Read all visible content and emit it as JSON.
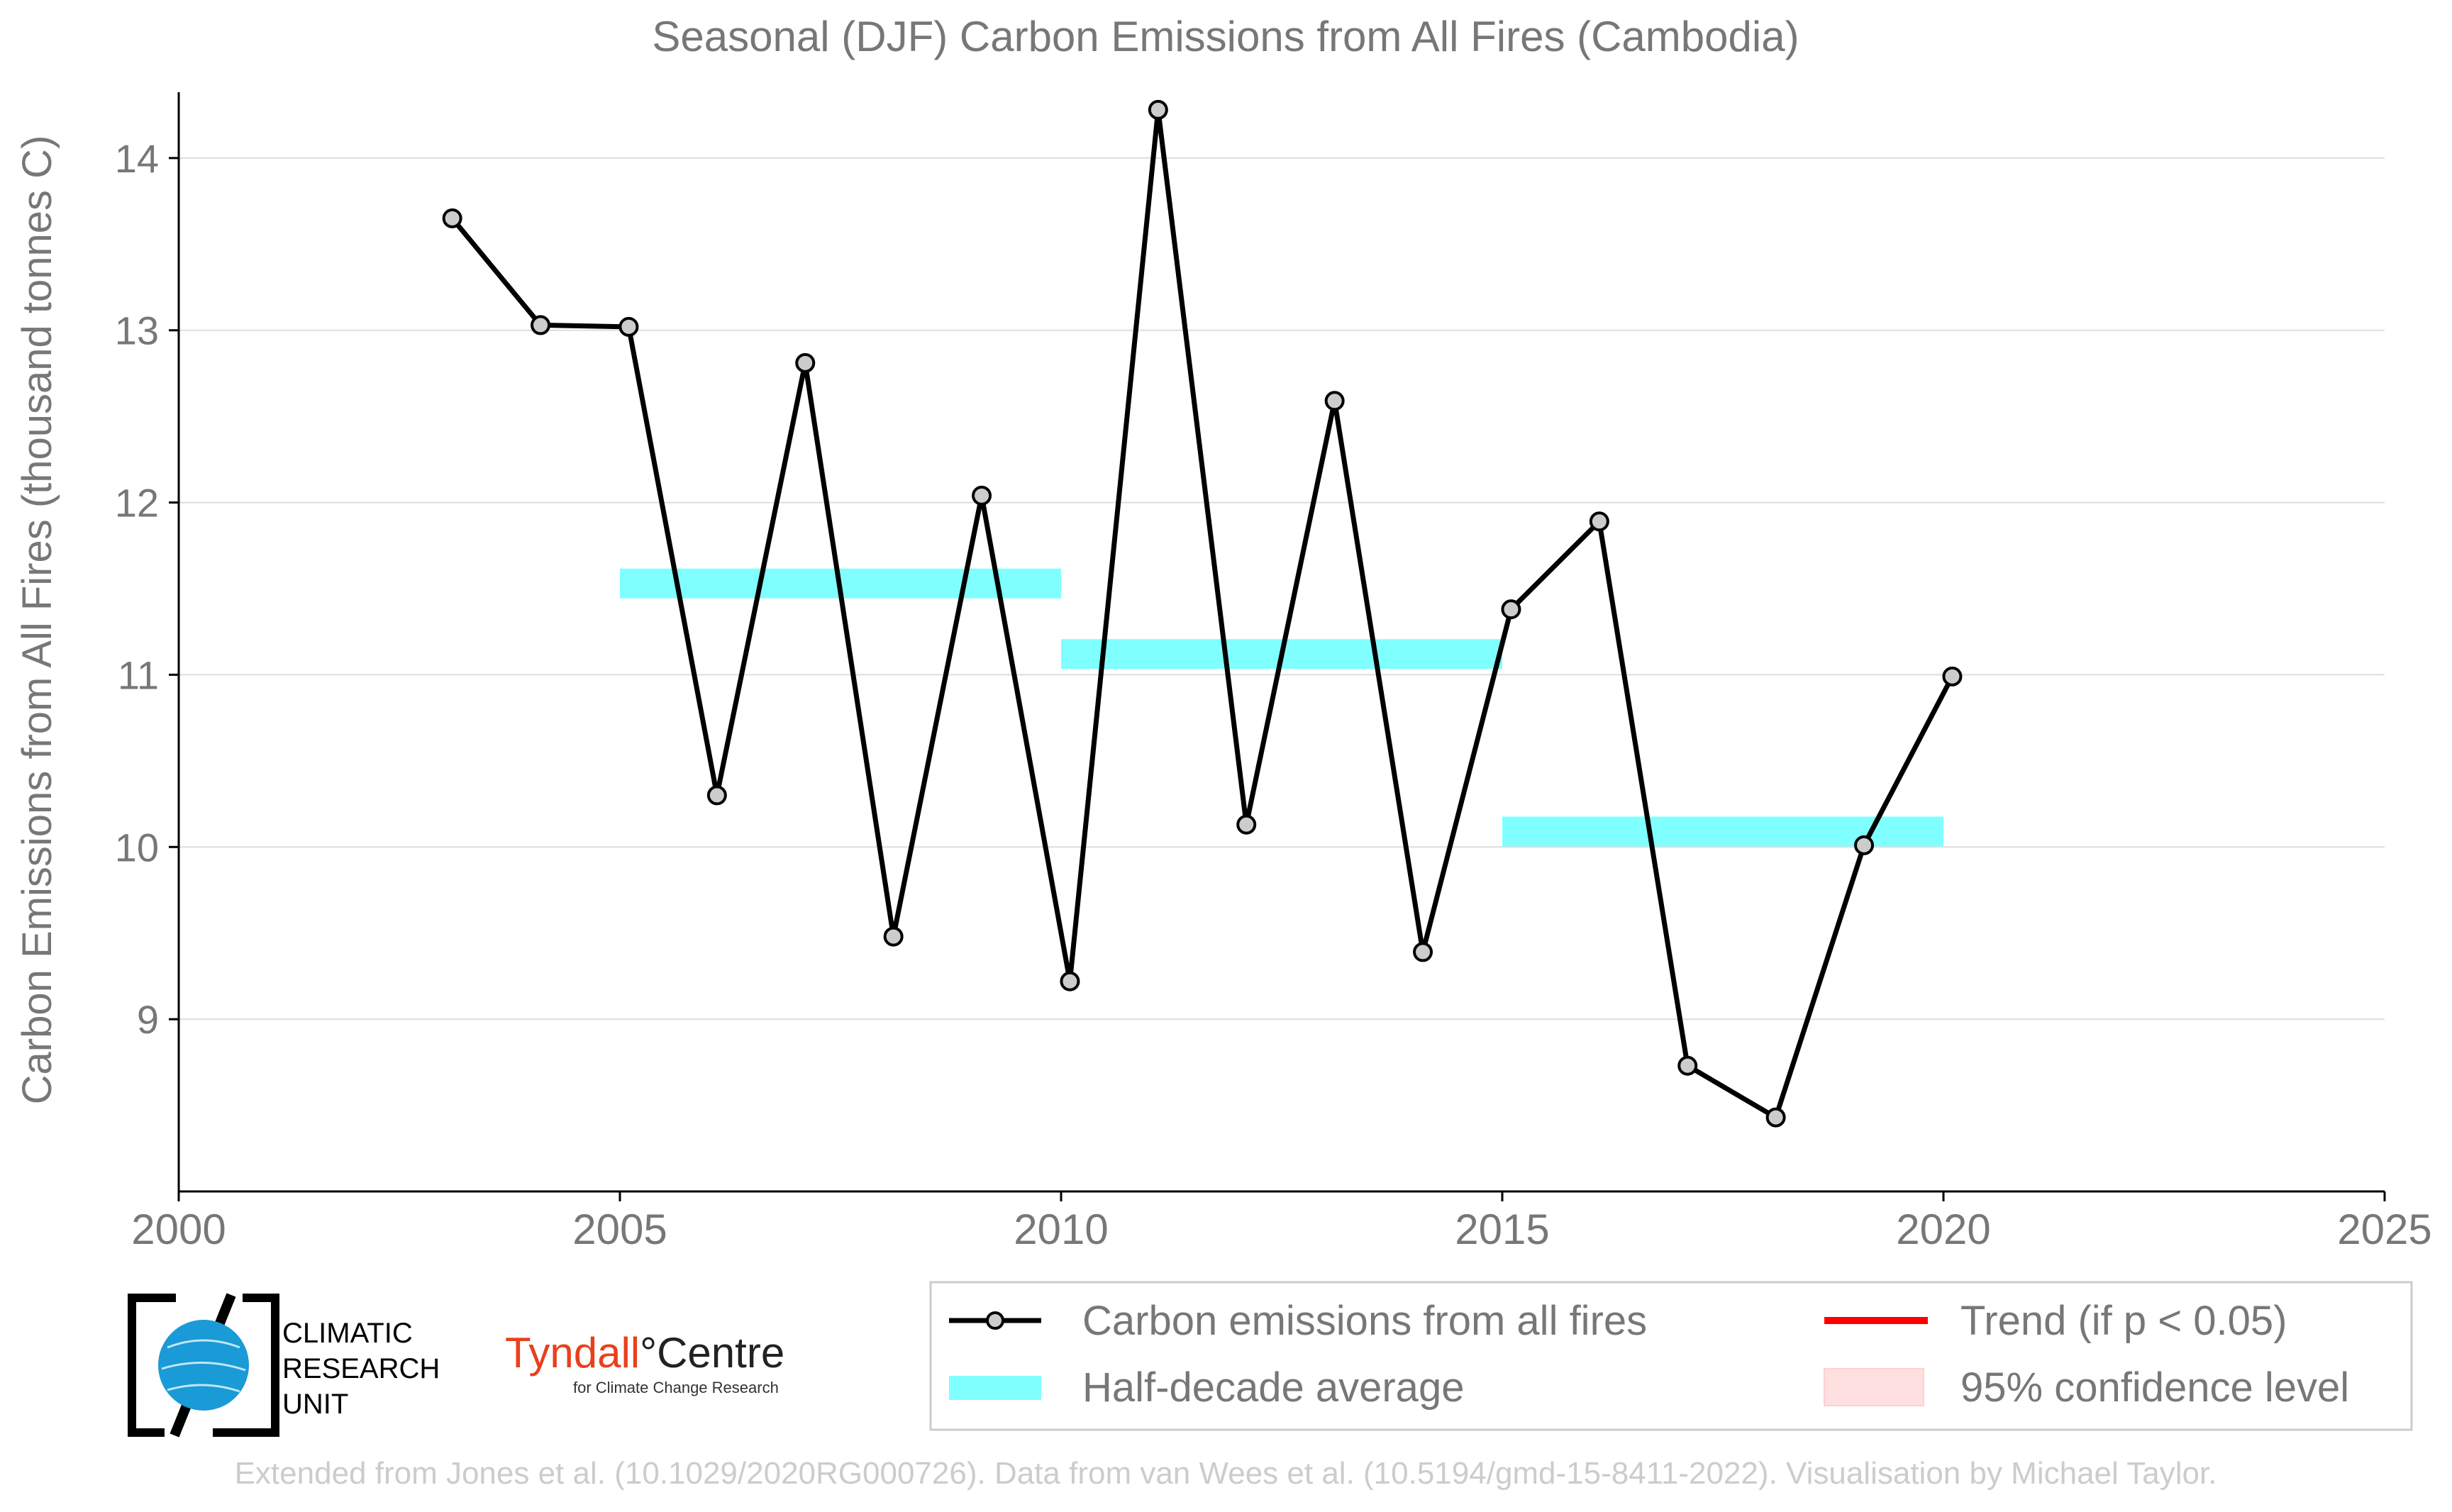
{
  "chart_data": {
    "type": "line",
    "title": "Seasonal (DJF) Carbon Emissions from All Fires (Cambodia)",
    "xlabel": "",
    "ylabel": "Carbon Emissions from All Fires (thousand tonnes C)",
    "xlim": [
      2000,
      2025
    ],
    "ylim": [
      8,
      14.3
    ],
    "x_ticks": [
      2000,
      2005,
      2010,
      2015,
      2020,
      2025
    ],
    "y_ticks": [
      9,
      10,
      11,
      12,
      13,
      14
    ],
    "grid": "horizontal",
    "legend_position": "bottom-right",
    "series": [
      {
        "name": "Carbon emissions from all fires",
        "color": "#000000",
        "marker_fill": "#cccccc",
        "x": [
          2003.1,
          2004.1,
          2005.1,
          2006.1,
          2007.1,
          2008.1,
          2009.1,
          2010.1,
          2011.1,
          2012.1,
          2013.1,
          2014.1,
          2015.1,
          2016.1,
          2017.1,
          2018.1,
          2019.1,
          2020.1
        ],
        "y": [
          13.65,
          13.03,
          13.02,
          10.3,
          12.81,
          9.48,
          12.04,
          9.22,
          14.28,
          10.13,
          12.59,
          9.39,
          11.38,
          11.89,
          8.73,
          8.43,
          10.01,
          10.99
        ]
      }
    ],
    "half_decade_average": {
      "name": "Half-decade average",
      "color": "#80ffff",
      "segments": [
        {
          "x_start": 2005,
          "x_end": 2010,
          "value": 11.53
        },
        {
          "x_start": 2010,
          "x_end": 2015,
          "value": 11.12
        },
        {
          "x_start": 2015,
          "x_end": 2020,
          "value": 10.09
        }
      ]
    },
    "legend": [
      {
        "label": "Carbon emissions from all fires",
        "kind": "line-marker",
        "color": "#000000"
      },
      {
        "label": "Trend (if p < 0.05)",
        "kind": "line",
        "color": "#ff0000"
      },
      {
        "label": "Half-decade average",
        "kind": "band",
        "color": "#80ffff"
      },
      {
        "label": "95% confidence level",
        "kind": "patch",
        "color": "#ffe0e0"
      }
    ]
  },
  "logos": {
    "cru": {
      "line1": "CLIMATIC",
      "line2": "RESEARCH",
      "line3": "UNIT",
      "globe_color": "#1a9ad6"
    },
    "tyndall": {
      "name_part1": "Tyndall",
      "name_part2": "°Centre",
      "subtitle": "for Climate Change Research",
      "color": "#e8401c"
    }
  },
  "credit": "Extended from Jones et al. (10.1029/2020RG000726). Data from van Wees et al. (10.5194/gmd-15-8411-2022). Visualisation by Michael Taylor."
}
